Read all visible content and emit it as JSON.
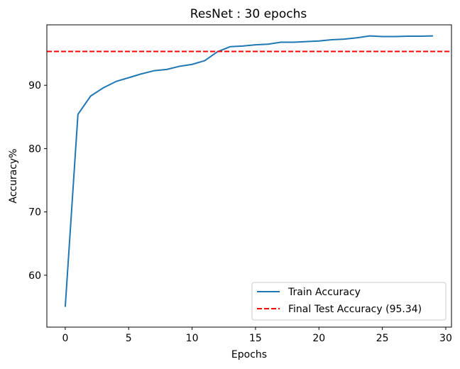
{
  "chart_data": {
    "type": "line",
    "title": "ResNet : 30 epochs",
    "xlabel": "Epochs",
    "ylabel": "Accuracy%",
    "xlim": [
      -1.45,
      30.45
    ],
    "ylim": [
      51.8,
      99.55
    ],
    "xticks": [
      0,
      5,
      10,
      15,
      20,
      25,
      30
    ],
    "yticks": [
      60,
      70,
      80,
      90
    ],
    "grid": false,
    "legend_position": "lower-right",
    "series": [
      {
        "name": "Train Accuracy",
        "color": "#1f77b4",
        "style": "solid",
        "x": [
          0,
          1,
          2,
          3,
          4,
          5,
          6,
          7,
          8,
          9,
          10,
          11,
          12,
          13,
          14,
          15,
          16,
          17,
          18,
          19,
          20,
          21,
          22,
          23,
          24,
          25,
          26,
          27,
          28,
          29
        ],
        "y": [
          55.0,
          85.4,
          88.3,
          89.6,
          90.6,
          91.2,
          91.8,
          92.3,
          92.5,
          93.0,
          93.3,
          93.9,
          95.3,
          96.1,
          96.2,
          96.4,
          96.5,
          96.8,
          96.8,
          96.9,
          97.0,
          97.2,
          97.3,
          97.5,
          97.8,
          97.7,
          97.7,
          97.75,
          97.75,
          97.8
        ]
      },
      {
        "name": "Final Test Accuracy (95.34)",
        "color": "#ff0000",
        "style": "dashed",
        "type": "hline",
        "y_value": 95.34
      }
    ]
  }
}
